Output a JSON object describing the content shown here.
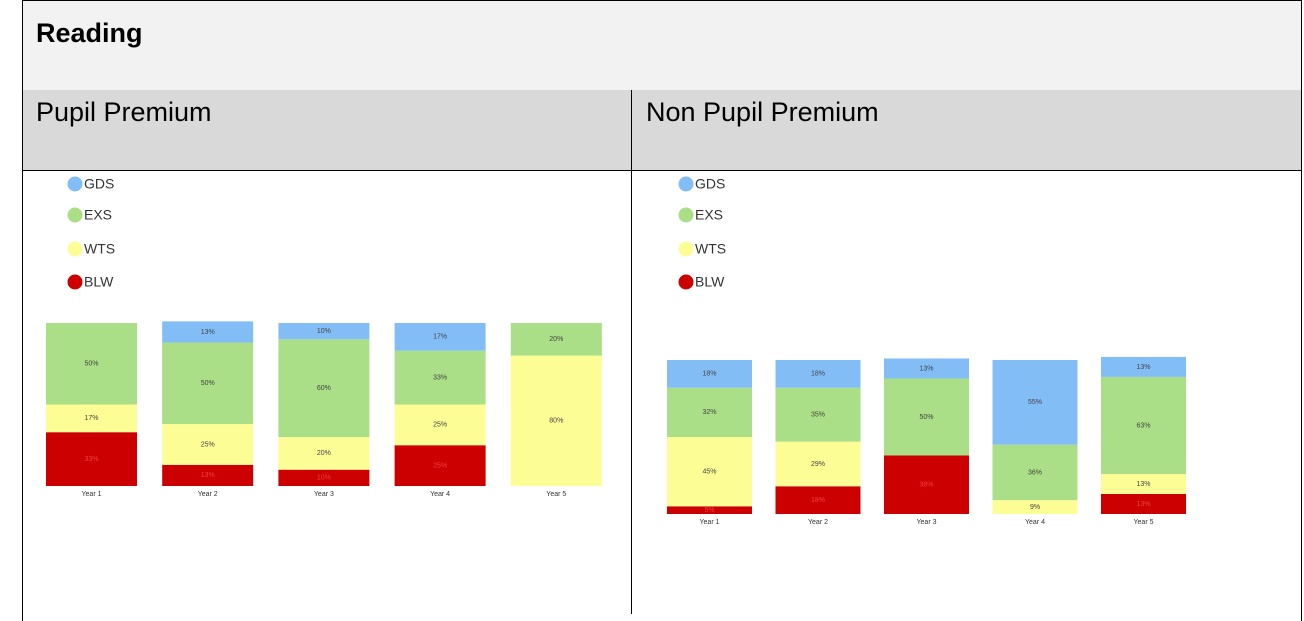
{
  "table": {
    "title": "Reading",
    "columns": [
      "Pupil Premium",
      "Non Pupil Premium"
    ]
  },
  "chart_data": [
    {
      "type": "stacked-bar",
      "categories": [
        "Year 1",
        "Year 2",
        "Year 3",
        "Year 4",
        "Year 5"
      ],
      "ylim": [
        0,
        100
      ],
      "series": [
        {
          "name": "GDS",
          "color": "#83bdf5",
          "values": [
            null,
            13,
            10,
            17,
            null
          ],
          "value_labels": [
            null,
            "13%",
            "10%",
            "17%",
            null
          ]
        },
        {
          "name": "EXS",
          "color": "#aade87",
          "values": [
            50,
            50,
            60,
            33,
            20
          ],
          "value_labels": [
            "50%",
            "50%",
            "60%",
            "33%",
            "20%"
          ]
        },
        {
          "name": "WTS",
          "color": "#fdfd96",
          "values": [
            17,
            25,
            20,
            25,
            80
          ],
          "value_labels": [
            "17%",
            "25%",
            "20%",
            "25%",
            "80%"
          ]
        },
        {
          "name": "BLW",
          "color": "#cc0000",
          "values": [
            33,
            13,
            10,
            25,
            null
          ],
          "value_labels": [
            "33%",
            "13%",
            "10%",
            "25%",
            null
          ]
        }
      ]
    },
    {
      "type": "stacked-bar",
      "categories": [
        "Year 1",
        "Year 2",
        "Year 3",
        "Year 4",
        "Year 5"
      ],
      "ylim": [
        0,
        100
      ],
      "series": [
        {
          "name": "GDS",
          "color": "#83bdf5",
          "values": [
            18,
            18,
            13,
            55,
            13
          ],
          "value_labels": [
            "18%",
            "18%",
            "13%",
            "55%",
            "13%"
          ]
        },
        {
          "name": "EXS",
          "color": "#aade87",
          "values": [
            32,
            35,
            50,
            36,
            63
          ],
          "value_labels": [
            "32%",
            "35%",
            "50%",
            "36%",
            "63%"
          ]
        },
        {
          "name": "WTS",
          "color": "#fdfd96",
          "values": [
            45,
            29,
            null,
            9,
            13
          ],
          "value_labels": [
            "45%",
            "29%",
            null,
            "9%",
            "13%"
          ]
        },
        {
          "name": "BLW",
          "color": "#cc0000",
          "values": [
            5,
            18,
            38,
            null,
            13
          ],
          "value_labels": [
            "5%",
            "18%",
            "38%",
            null,
            "13%"
          ]
        }
      ]
    }
  ]
}
